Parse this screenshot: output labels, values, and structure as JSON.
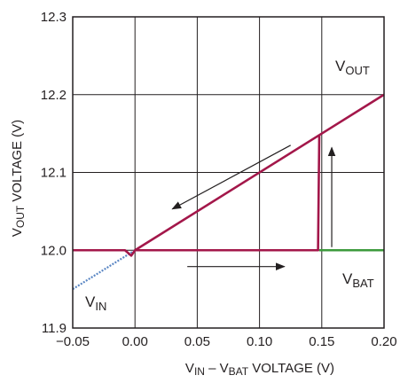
{
  "chart_data": {
    "type": "line",
    "title": "",
    "xlim": [
      -0.05,
      0.2
    ],
    "ylim": [
      11.9,
      12.3
    ],
    "x_ticks": [
      -0.05,
      0.0,
      0.05,
      0.1,
      0.15,
      0.2
    ],
    "y_ticks": [
      11.9,
      12.0,
      12.1,
      12.2,
      12.3
    ],
    "x_tick_labels": [
      "−0.05",
      "0.00",
      "0.05",
      "0.10",
      "0.15",
      "0.20"
    ],
    "y_tick_labels": [
      "11.9",
      "12.0",
      "12.1",
      "12.2",
      "12.3"
    ],
    "grid": true,
    "xlabel": {
      "v_in": "V",
      "v_in_sub": "IN",
      "minus": " – ",
      "v_bat": "V",
      "v_bat_sub": "BAT",
      "suffix": " VOLTAGE (V)"
    },
    "ylabel": {
      "v_out": "V",
      "v_out_sub": "OUT",
      "suffix": "  VOLTAGE (V)"
    },
    "series": [
      {
        "name": "VOUT",
        "label_main": "V",
        "label_sub": "OUT",
        "color": "#a3174a",
        "points": [
          [
            -0.05,
            12.0
          ],
          [
            -0.008,
            12.0
          ],
          [
            -0.003,
            11.993
          ],
          [
            0.0,
            12.0
          ],
          [
            0.2,
            12.2
          ]
        ]
      },
      {
        "name": "VOUT-hysteresis",
        "color": "#a3174a",
        "points": [
          [
            0.0,
            12.0
          ],
          [
            0.147,
            12.0
          ],
          [
            0.148,
            12.148
          ]
        ]
      },
      {
        "name": "VIN",
        "label_main": "V",
        "label_sub": "IN",
        "color": "#5b87c4",
        "style": "dotted",
        "points": [
          [
            -0.05,
            11.95
          ],
          [
            0.0,
            12.0
          ]
        ]
      },
      {
        "name": "VBAT",
        "label_main": "V",
        "label_sub": "BAT",
        "color": "#3c9a3c",
        "points": [
          [
            0.148,
            12.0
          ],
          [
            0.2,
            12.0
          ]
        ]
      }
    ],
    "arrows": [
      {
        "direction": "down-left",
        "from": [
          0.125,
          12.135
        ],
        "to": [
          0.03,
          12.053
        ]
      },
      {
        "direction": "right",
        "from": [
          0.042,
          11.979
        ],
        "to": [
          0.12,
          11.979
        ]
      },
      {
        "direction": "up",
        "from": [
          0.158,
          12.004
        ],
        "to": [
          0.158,
          12.132
        ]
      }
    ]
  }
}
